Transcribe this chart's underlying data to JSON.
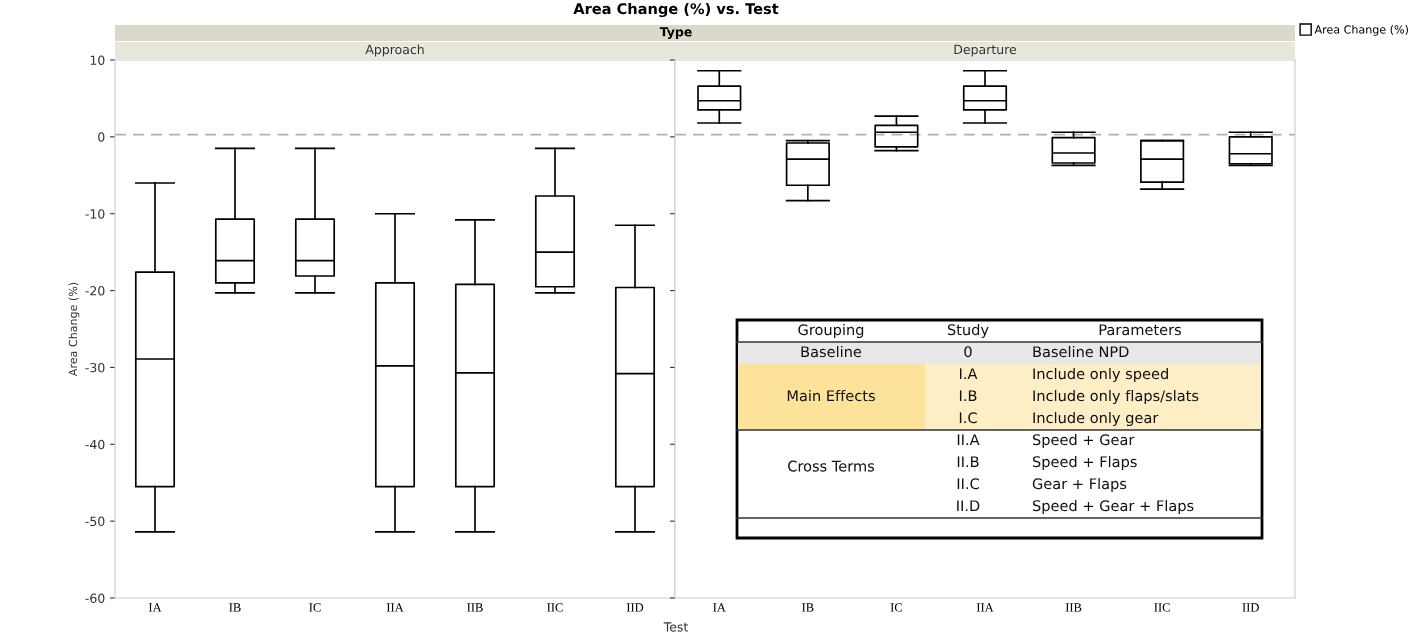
{
  "chart_data": [
    {
      "type": "box",
      "title": "Area Change (%) vs. Test",
      "subtitle": "Approach",
      "xlabel": "Test",
      "ylabel": "Area Change (%)",
      "legend_title": "Type",
      "categories": [
        "IA",
        "IB",
        "IC",
        "IIA",
        "IIB",
        "IIC",
        "IID"
      ],
      "series": [
        {
          "color": "#000000",
          "boxes": [
            {
              "low": -51.4,
              "q1": -45.5,
              "median": -28.9,
              "q3": -17.6,
              "high": -6.0
            },
            {
              "low": -20.3,
              "q1": -19.0,
              "median": -16.1,
              "q3": -10.7,
              "high": -1.5
            },
            {
              "low": -20.3,
              "q1": -18.1,
              "median": -16.1,
              "q3": -10.7,
              "high": -1.5
            },
            {
              "low": -51.4,
              "q1": -45.5,
              "median": -29.8,
              "q3": -19.0,
              "high": -10.0
            },
            {
              "low": -51.4,
              "q1": -45.5,
              "median": -30.7,
              "q3": -19.2,
              "high": -10.8
            },
            {
              "low": -20.3,
              "q1": -19.5,
              "median": -15.0,
              "q3": -7.7,
              "high": -1.5
            },
            {
              "low": -51.4,
              "q1": -45.5,
              "median": -30.8,
              "q3": -19.6,
              "high": -11.5
            }
          ]
        }
      ],
      "ylim": [
        -60,
        10
      ],
      "yticks": [
        -60,
        -50,
        -40,
        -30,
        -20,
        -10,
        0,
        10
      ],
      "ref_lines": [
        {
          "axis": "y",
          "value": 0.3,
          "color": "#b0b0b0",
          "line_style": "dashed"
        }
      ],
      "grid": false,
      "legend": false
    },
    {
      "type": "box",
      "subtitle": "Departure",
      "categories": [
        "IA",
        "IB",
        "IC",
        "IIA",
        "IIB",
        "IIC",
        "IID"
      ],
      "series": [
        {
          "name": "Area Change (%)",
          "color": "#000000",
          "boxes": [
            {
              "low": 1.8,
              "q1": 3.5,
              "median": 4.7,
              "q3": 6.6,
              "high": 8.6
            },
            {
              "low": -8.3,
              "q1": -6.3,
              "median": -2.9,
              "q3": -0.8,
              "high": -0.5
            },
            {
              "low": -1.8,
              "q1": -1.3,
              "median": 0.6,
              "q3": 1.5,
              "high": 2.7
            },
            {
              "low": 1.8,
              "q1": 3.5,
              "median": 4.7,
              "q3": 6.6,
              "high": 8.6
            },
            {
              "low": -3.7,
              "q1": -3.4,
              "median": -2.1,
              "q3": -0.1,
              "high": 0.6
            },
            {
              "low": -6.8,
              "q1": -5.9,
              "median": -2.9,
              "q3": -0.5,
              "high": -0.5
            },
            {
              "low": -3.7,
              "q1": -3.5,
              "median": -2.2,
              "q3": 0.0,
              "high": 0.6
            }
          ]
        }
      ],
      "ylim": [
        -60,
        10
      ],
      "yticks": [
        -60,
        -50,
        -40,
        -30,
        -20,
        -10,
        0,
        10
      ],
      "tick_labels": "x",
      "ref_lines": [
        {
          "axis": "y",
          "value": 0.3,
          "color": "#b0b0b0",
          "line_style": "dashed"
        }
      ],
      "grid": false,
      "legend": "top right",
      "annotations": [
        "Grouping",
        "Study",
        "Parameters",
        "Baseline",
        "0",
        "Baseline NPD",
        "Main Effects",
        "I.A",
        "Include only speed",
        "I.B",
        "Include only flaps/slats",
        "I.C",
        "Include only gear",
        "Cross Terms",
        "II.A",
        "Speed + Gear",
        "II.B",
        "Speed + Flaps",
        "II.C",
        "Gear + Flaps",
        "II.D",
        "Speed + Gear + Flaps"
      ]
    }
  ]
}
